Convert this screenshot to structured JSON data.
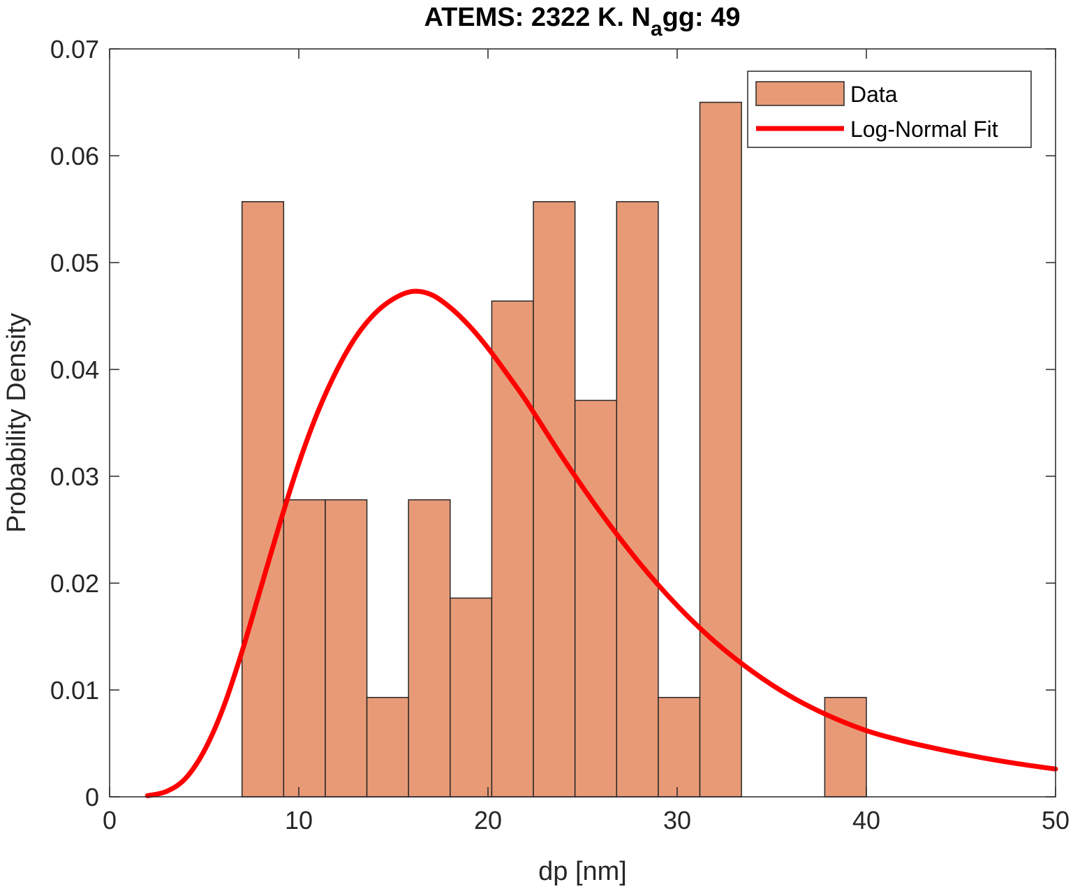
{
  "chart_data": {
    "type": "bar",
    "title": {
      "main": "ATEMS: 2322 K. N",
      "subscript": "a",
      "suffix": "gg: 49"
    },
    "xlabel": "dp [nm]",
    "ylabel": "Probability Density",
    "xlim": [
      0,
      50
    ],
    "ylim": [
      0,
      0.07
    ],
    "xticks": [
      0,
      10,
      20,
      30,
      40,
      50
    ],
    "xtick_labels": [
      "0",
      "10",
      "20",
      "30",
      "40",
      "50"
    ],
    "yticks": [
      0,
      0.01,
      0.02,
      0.03,
      0.04,
      0.05,
      0.06,
      0.07
    ],
    "ytick_labels": [
      "0",
      "0.01",
      "0.02",
      "0.03",
      "0.04",
      "0.05",
      "0.06",
      "0.07"
    ],
    "grid": false,
    "legend_position": "top-right",
    "colors": {
      "bar_fill": "#e89a77",
      "bar_edge": "#262626",
      "fit_line": "#ff0000"
    },
    "series": [
      {
        "name": "Data",
        "kind": "histogram",
        "bin_edges": [
          7.0,
          9.2,
          11.4,
          13.6,
          15.8,
          18.0,
          20.2,
          22.4,
          24.6,
          26.8,
          29.0,
          31.2,
          33.4,
          35.6,
          37.8,
          40.0
        ],
        "values": [
          0.0557,
          0.0278,
          0.0278,
          0.0093,
          0.0278,
          0.0186,
          0.0464,
          0.0557,
          0.0371,
          0.0557,
          0.0093,
          0.065,
          0,
          0,
          0.0093
        ]
      },
      {
        "name": "Log-Normal Fit",
        "kind": "line",
        "x": [
          2,
          3,
          4,
          5,
          6,
          7,
          8,
          9,
          10,
          11,
          12,
          13,
          14,
          15,
          16,
          17,
          18,
          19,
          20,
          21,
          22,
          24,
          26,
          28,
          30,
          32,
          34,
          36,
          38,
          40,
          42,
          44,
          46,
          48,
          50
        ],
        "y": [
          0.0001,
          0.0005,
          0.0017,
          0.0043,
          0.0083,
          0.0136,
          0.0196,
          0.0256,
          0.0312,
          0.036,
          0.0399,
          0.043,
          0.0452,
          0.0466,
          0.0473,
          0.047,
          0.0458,
          0.0441,
          0.042,
          0.0396,
          0.0371,
          0.0316,
          0.0265,
          0.0219,
          0.0179,
          0.0145,
          0.0117,
          0.0094,
          0.0076,
          0.0062,
          0.0052,
          0.0044,
          0.0037,
          0.0031,
          0.0026
        ]
      }
    ]
  }
}
